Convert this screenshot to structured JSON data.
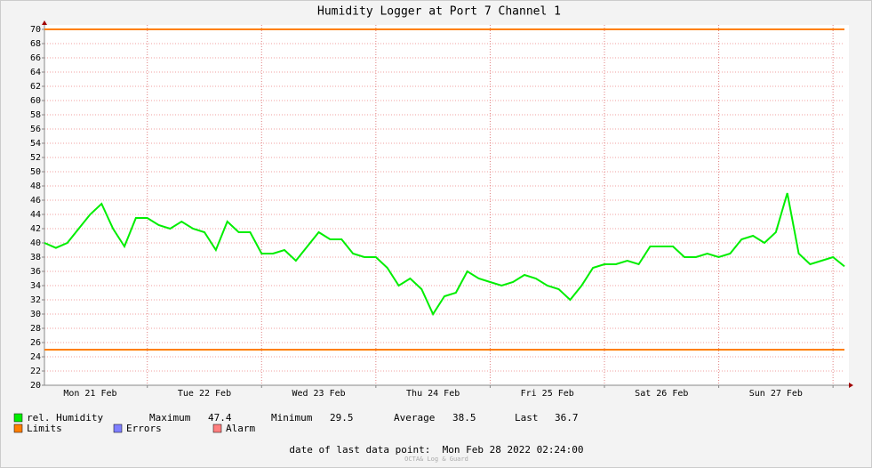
{
  "chart_data": {
    "type": "line",
    "title": "Humidity Logger at Port 7 Channel 1",
    "x": [
      0.1,
      0.2,
      0.3,
      0.4,
      0.5,
      0.6,
      0.7,
      0.8,
      0.9,
      1.0,
      1.1,
      1.2,
      1.3,
      1.4,
      1.5,
      1.6,
      1.7,
      1.8,
      1.9,
      2.0,
      2.1,
      2.2,
      2.3,
      2.4,
      2.5,
      2.6,
      2.7,
      2.8,
      2.9,
      3.0,
      3.1,
      3.2,
      3.3,
      3.4,
      3.5,
      3.6,
      3.7,
      3.8,
      3.9,
      4.0,
      4.1,
      4.2,
      4.3,
      4.4,
      4.5,
      4.6,
      4.7,
      4.8,
      4.9,
      5.0,
      5.1,
      5.2,
      5.3,
      5.4,
      5.5,
      5.6,
      5.7,
      5.8,
      5.9,
      6.0,
      6.1,
      6.2,
      6.3,
      6.4,
      6.5,
      6.6,
      6.7,
      6.8,
      6.9,
      7.0,
      7.1
    ],
    "series": [
      {
        "name": "rel. Humidity",
        "color": "#00ee00",
        "values": [
          40,
          39.3,
          40,
          42,
          44,
          45.5,
          42,
          39.5,
          43.5,
          43.5,
          42.5,
          42,
          43,
          42,
          41.5,
          39,
          43,
          41.5,
          41.5,
          38.5,
          38.5,
          39,
          37.5,
          39.5,
          41.5,
          40.5,
          40.5,
          38.5,
          38,
          38,
          36.5,
          34,
          35,
          33.5,
          30,
          32.5,
          33,
          36,
          35,
          34.5,
          34,
          34.5,
          35.5,
          35,
          34,
          33.5,
          32,
          34,
          36.5,
          37,
          37,
          37.5,
          37,
          39.5,
          39.5,
          39.5,
          38,
          38,
          38.5,
          38,
          38.5,
          40.5,
          41,
          40,
          41.5,
          47,
          38.5,
          37,
          37.5,
          38,
          36.7
        ]
      }
    ],
    "limits": {
      "name": "Limits",
      "color": "#ff7f00",
      "values": [
        70,
        25
      ]
    },
    "legend": [
      {
        "name": "Errors",
        "color": "#7f7fff"
      },
      {
        "name": "Alarm",
        "color": "#ff7f7f"
      }
    ],
    "stats": [
      {
        "label": "Maximum",
        "value": 47.4
      },
      {
        "label": "Minimum",
        "value": 29.5
      },
      {
        "label": "Average",
        "value": 38.5
      },
      {
        "label": "Last",
        "value": 36.7
      }
    ],
    "footer": "date of last data point:  Mon Feb 28 2022 02:24:00",
    "credit": "OCTA& Log & Guard",
    "xlim": [
      0.1,
      7.1
    ],
    "xticks": [
      {
        "value": 0.5,
        "label": "Mon 21 Feb"
      },
      {
        "value": 1.5,
        "label": "Tue 22 Feb"
      },
      {
        "value": 2.5,
        "label": "Wed 23 Feb"
      },
      {
        "value": 3.5,
        "label": "Thu 24 Feb"
      },
      {
        "value": 4.5,
        "label": "Fri 25 Feb"
      },
      {
        "value": 5.5,
        "label": "Sat 26 Feb"
      },
      {
        "value": 6.5,
        "label": "Sun 27 Feb"
      }
    ],
    "xgrid": [
      1,
      2,
      3,
      4,
      5,
      6,
      7
    ],
    "ylim": [
      20,
      70
    ],
    "yticks": [
      20,
      22,
      24,
      26,
      28,
      30,
      32,
      34,
      36,
      38,
      40,
      42,
      44,
      46,
      48,
      50,
      52,
      54,
      56,
      58,
      60,
      62,
      64,
      66,
      68,
      70
    ],
    "grid": true
  }
}
